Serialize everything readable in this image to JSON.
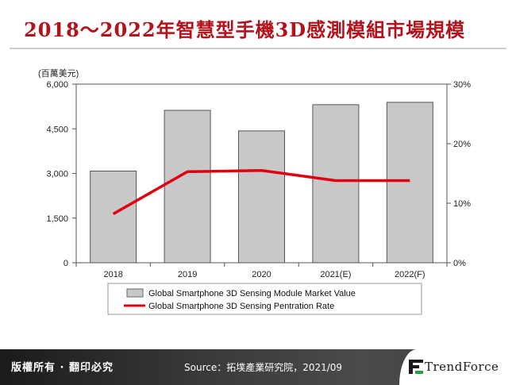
{
  "header": {
    "title": "2018～2022年智慧型手機3D感測模組市場規模"
  },
  "footer": {
    "rights": "版權所有 · 翻印必究",
    "source": "Source：拓墣產業研究院，2021/09",
    "logo": "TrendForce",
    "logo_icon": "trendforce-logo-icon"
  },
  "colors": {
    "title": "#b3121b",
    "bar": "#c8c8c8",
    "line": "#e00010",
    "footer": "#2b2b2b"
  },
  "chart_data": {
    "type": "bar",
    "categories": [
      "2018",
      "2019",
      "2020",
      "2021(E)",
      "2022(F)"
    ],
    "y_unit_label": "(百萬美元)",
    "ylim": [
      0,
      6000
    ],
    "yticks": [
      "6,000",
      "4,500",
      "3,000",
      "1,500",
      "0"
    ],
    "ytick_values": [
      6000,
      4500,
      3000,
      1500,
      0
    ],
    "y2lim": [
      0,
      30
    ],
    "y2ticks": [
      "30%",
      "20%",
      "10%",
      "0%"
    ],
    "y2tick_values": [
      30,
      20,
      10,
      0
    ],
    "grid": false,
    "legend_position": "bottom",
    "series": [
      {
        "name": "Global Smartphone 3D Sensing Module Market Value",
        "kind": "bar",
        "axis": "left",
        "values": [
          3080,
          5120,
          4430,
          5310,
          5390
        ]
      },
      {
        "name": "Global Smartphone 3D Sensing Pentration Rate",
        "kind": "line",
        "axis": "right",
        "values": [
          8.2,
          15.3,
          15.5,
          13.8,
          13.8
        ]
      }
    ]
  }
}
